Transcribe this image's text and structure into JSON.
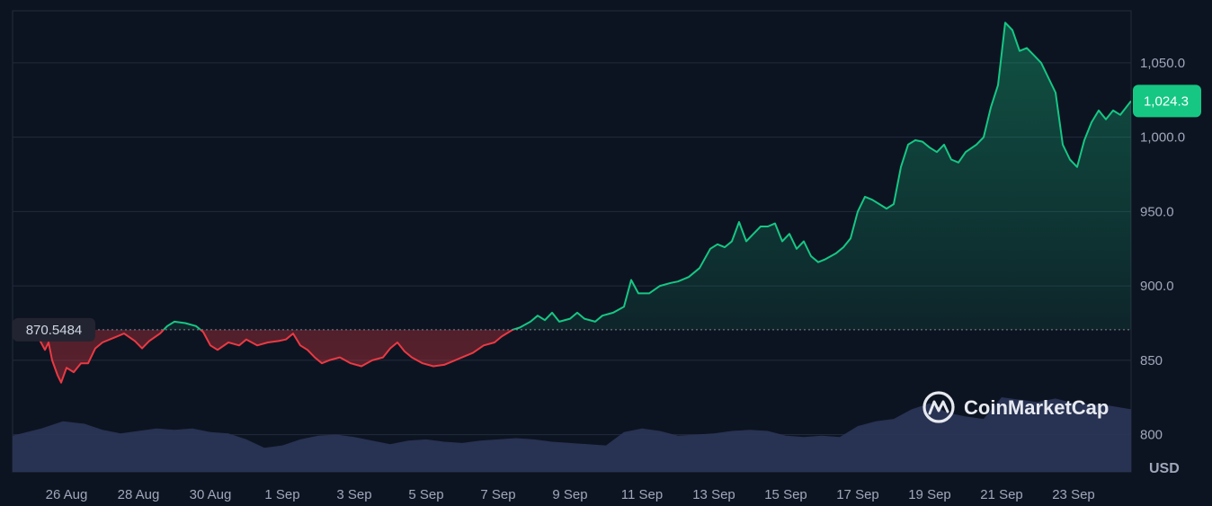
{
  "brand": {
    "name": "CoinMarketCap",
    "icon": "coinmarketcap-logo-icon"
  },
  "colors": {
    "background": "#0d1421",
    "grid": "#222b3c",
    "up": "#16c784",
    "down": "#ea3943",
    "volume": "#2b3558",
    "label_bg": "#222531"
  },
  "chart_data": {
    "type": "line",
    "unit": "USD",
    "baseline": {
      "value": 870.5484,
      "label": "870.5484"
    },
    "current": {
      "value": 1024.3,
      "label": "1,024.3"
    },
    "ylim": [
      775,
      1085
    ],
    "y_ticks": [
      {
        "value": 800,
        "label": "800"
      },
      {
        "value": 850,
        "label": "850"
      },
      {
        "value": 900,
        "label": "900.0"
      },
      {
        "value": 950,
        "label": "950.0"
      },
      {
        "value": 1000,
        "label": "1,000.0"
      },
      {
        "value": 1050,
        "label": "1,050.0"
      }
    ],
    "x_ticks": [
      "26 Aug",
      "28 Aug",
      "30 Aug",
      "1 Sep",
      "3 Sep",
      "5 Sep",
      "7 Sep",
      "9 Sep",
      "11 Sep",
      "13 Sep",
      "15 Sep",
      "17 Sep",
      "19 Sep",
      "21 Sep",
      "23 Sep"
    ],
    "x_tick_days": [
      1,
      3,
      5,
      7,
      9,
      11,
      13,
      15,
      17,
      19,
      21,
      23,
      25,
      27,
      29
    ],
    "x_range_days": [
      -0.5,
      30.6
    ],
    "series": [
      {
        "points": [
          [
            -0.5,
            870
          ],
          [
            -0.3,
            865
          ],
          [
            -0.1,
            868
          ],
          [
            0.0,
            872
          ],
          [
            0.2,
            866
          ],
          [
            0.4,
            857
          ],
          [
            0.5,
            862
          ],
          [
            0.6,
            850
          ],
          [
            0.75,
            840
          ],
          [
            0.85,
            835
          ],
          [
            1.0,
            845
          ],
          [
            1.2,
            842
          ],
          [
            1.4,
            848
          ],
          [
            1.6,
            848
          ],
          [
            1.8,
            858
          ],
          [
            2.0,
            862
          ],
          [
            2.3,
            865
          ],
          [
            2.6,
            868
          ],
          [
            2.9,
            863
          ],
          [
            3.1,
            858
          ],
          [
            3.3,
            863
          ],
          [
            3.6,
            868
          ],
          [
            3.8,
            873
          ],
          [
            4.0,
            876
          ],
          [
            4.3,
            875
          ],
          [
            4.6,
            873
          ],
          [
            4.8,
            869
          ],
          [
            5.0,
            860
          ],
          [
            5.2,
            857
          ],
          [
            5.5,
            862
          ],
          [
            5.8,
            860
          ],
          [
            6.0,
            864
          ],
          [
            6.3,
            860
          ],
          [
            6.6,
            862
          ],
          [
            6.9,
            863
          ],
          [
            7.1,
            864
          ],
          [
            7.3,
            868
          ],
          [
            7.5,
            860
          ],
          [
            7.7,
            857
          ],
          [
            7.9,
            852
          ],
          [
            8.1,
            848
          ],
          [
            8.3,
            850
          ],
          [
            8.6,
            852
          ],
          [
            8.9,
            848
          ],
          [
            9.2,
            846
          ],
          [
            9.5,
            850
          ],
          [
            9.8,
            852
          ],
          [
            10.0,
            858
          ],
          [
            10.2,
            862
          ],
          [
            10.4,
            856
          ],
          [
            10.6,
            852
          ],
          [
            10.9,
            848
          ],
          [
            11.2,
            846
          ],
          [
            11.5,
            847
          ],
          [
            11.8,
            850
          ],
          [
            12.0,
            852
          ],
          [
            12.3,
            855
          ],
          [
            12.6,
            860
          ],
          [
            12.9,
            862
          ],
          [
            13.1,
            866
          ],
          [
            13.4,
            870.5
          ],
          [
            13.6,
            872
          ],
          [
            13.9,
            876
          ],
          [
            14.1,
            880
          ],
          [
            14.3,
            877
          ],
          [
            14.5,
            882
          ],
          [
            14.7,
            876
          ],
          [
            15.0,
            878
          ],
          [
            15.2,
            882
          ],
          [
            15.4,
            878
          ],
          [
            15.7,
            876
          ],
          [
            15.9,
            880
          ],
          [
            16.2,
            882
          ],
          [
            16.5,
            886
          ],
          [
            16.7,
            904
          ],
          [
            16.9,
            895
          ],
          [
            17.2,
            895
          ],
          [
            17.5,
            900
          ],
          [
            17.8,
            902
          ],
          [
            18.0,
            903
          ],
          [
            18.3,
            906
          ],
          [
            18.6,
            912
          ],
          [
            18.9,
            925
          ],
          [
            19.1,
            928
          ],
          [
            19.3,
            926
          ],
          [
            19.5,
            930
          ],
          [
            19.7,
            943
          ],
          [
            19.9,
            930
          ],
          [
            20.1,
            935
          ],
          [
            20.3,
            940
          ],
          [
            20.5,
            940
          ],
          [
            20.7,
            942
          ],
          [
            20.9,
            930
          ],
          [
            21.1,
            935
          ],
          [
            21.3,
            925
          ],
          [
            21.5,
            930
          ],
          [
            21.7,
            920
          ],
          [
            21.9,
            916
          ],
          [
            22.1,
            918
          ],
          [
            22.4,
            922
          ],
          [
            22.6,
            926
          ],
          [
            22.8,
            932
          ],
          [
            23.0,
            950
          ],
          [
            23.2,
            960
          ],
          [
            23.4,
            958
          ],
          [
            23.6,
            955
          ],
          [
            23.8,
            952
          ],
          [
            24.0,
            955
          ],
          [
            24.2,
            980
          ],
          [
            24.4,
            995
          ],
          [
            24.6,
            998
          ],
          [
            24.8,
            997
          ],
          [
            25.0,
            993
          ],
          [
            25.2,
            990
          ],
          [
            25.4,
            995
          ],
          [
            25.6,
            985
          ],
          [
            25.8,
            983
          ],
          [
            26.0,
            990
          ],
          [
            26.3,
            995
          ],
          [
            26.5,
            1000
          ],
          [
            26.7,
            1020
          ],
          [
            26.9,
            1035
          ],
          [
            27.1,
            1077
          ],
          [
            27.3,
            1072
          ],
          [
            27.5,
            1058
          ],
          [
            27.7,
            1060
          ],
          [
            27.9,
            1055
          ],
          [
            28.1,
            1050
          ],
          [
            28.3,
            1040
          ],
          [
            28.5,
            1030
          ],
          [
            28.7,
            995
          ],
          [
            28.9,
            985
          ],
          [
            29.1,
            980
          ],
          [
            29.3,
            998
          ],
          [
            29.5,
            1010
          ],
          [
            29.7,
            1018
          ],
          [
            29.9,
            1012
          ],
          [
            30.1,
            1018
          ],
          [
            30.3,
            1015
          ],
          [
            30.6,
            1024.3
          ]
        ]
      }
    ],
    "volume": {
      "ylim": [
        0,
        65
      ],
      "points": [
        [
          -0.5,
          30
        ],
        [
          0.3,
          36
        ],
        [
          0.9,
          42
        ],
        [
          1.5,
          40
        ],
        [
          2.0,
          35
        ],
        [
          2.5,
          32
        ],
        [
          3.0,
          34
        ],
        [
          3.5,
          36
        ],
        [
          4.0,
          35
        ],
        [
          4.5,
          36
        ],
        [
          5.0,
          33
        ],
        [
          5.5,
          32
        ],
        [
          6.0,
          27
        ],
        [
          6.5,
          20
        ],
        [
          7.0,
          22
        ],
        [
          7.5,
          27
        ],
        [
          8.0,
          30
        ],
        [
          8.5,
          31
        ],
        [
          9.0,
          29
        ],
        [
          9.5,
          26
        ],
        [
          10.0,
          23
        ],
        [
          10.5,
          26
        ],
        [
          11.0,
          27
        ],
        [
          11.5,
          25
        ],
        [
          12.0,
          24
        ],
        [
          12.5,
          26
        ],
        [
          13.0,
          27
        ],
        [
          13.5,
          28
        ],
        [
          14.0,
          27
        ],
        [
          14.5,
          25
        ],
        [
          15.0,
          24
        ],
        [
          15.5,
          23
        ],
        [
          16.0,
          22
        ],
        [
          16.5,
          33
        ],
        [
          17.0,
          36
        ],
        [
          17.5,
          34
        ],
        [
          18.0,
          30
        ],
        [
          18.5,
          31
        ],
        [
          19.0,
          32
        ],
        [
          19.5,
          34
        ],
        [
          20.0,
          35
        ],
        [
          20.5,
          34
        ],
        [
          21.0,
          30
        ],
        [
          21.5,
          29
        ],
        [
          22.0,
          30
        ],
        [
          22.5,
          29
        ],
        [
          23.0,
          38
        ],
        [
          23.5,
          42
        ],
        [
          24.0,
          44
        ],
        [
          24.5,
          52
        ],
        [
          25.0,
          57
        ],
        [
          25.5,
          49
        ],
        [
          26.0,
          46
        ],
        [
          26.5,
          44
        ],
        [
          27.0,
          62
        ],
        [
          27.5,
          60
        ],
        [
          28.0,
          58
        ],
        [
          28.5,
          61
        ],
        [
          29.0,
          57
        ],
        [
          29.5,
          56
        ],
        [
          30.0,
          55
        ],
        [
          30.6,
          52
        ]
      ]
    }
  }
}
